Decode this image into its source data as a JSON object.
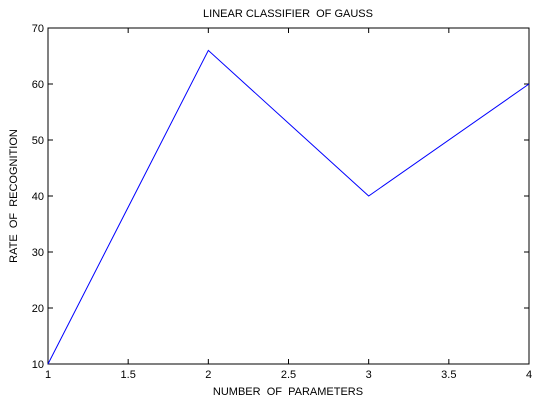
{
  "chart_data": {
    "type": "line",
    "title": "LINEAR CLASSIFIER  OF GAUSS",
    "x_label": "NUMBER  OF  PARAMETERS",
    "y_label": "RATE  OF  RECOGNITION",
    "x": [
      1,
      2,
      3,
      4
    ],
    "series": [
      {
        "color": "#0000ff",
        "values": [
          10,
          66,
          40,
          60
        ]
      }
    ],
    "xlim": [
      1,
      4
    ],
    "xticks": [
      1,
      1.5,
      2,
      2.5,
      3,
      3.5,
      4
    ],
    "ylim": [
      10,
      70
    ],
    "yticks": [
      10,
      20,
      30,
      40,
      50,
      60,
      70
    ],
    "grid": false
  }
}
